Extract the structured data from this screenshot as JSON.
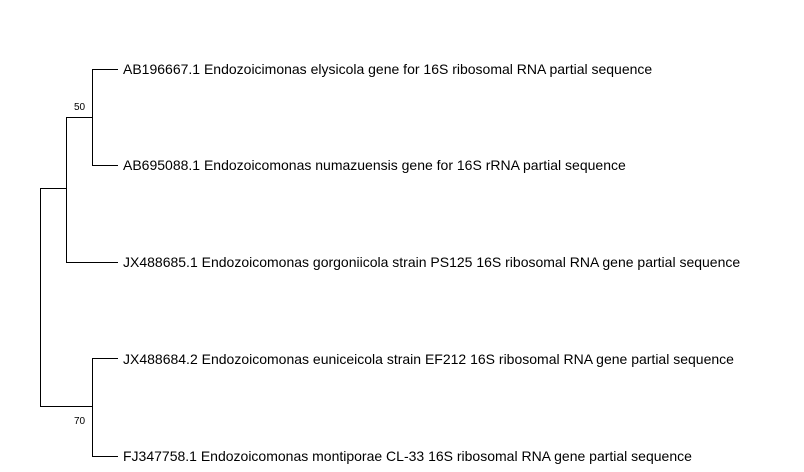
{
  "tree": {
    "leaves": [
      {
        "id": "leaf1",
        "label": "AB196667.1 Endozoicimonas elysicola gene for 16S ribosomal RNA partial sequence"
      },
      {
        "id": "leaf2",
        "label": "AB695088.1 Endozoicomonas numazuensis gene for 16S rRNA partial sequence"
      },
      {
        "id": "leaf3",
        "label": "JX488685.1 Endozoicomonas gorgoniicola strain PS125 16S ribosomal RNA gene partial sequence"
      },
      {
        "id": "leaf4",
        "label": "JX488684.2 Endozoicomonas euniceicola strain EF212 16S ribosomal RNA gene partial sequence"
      },
      {
        "id": "leaf5",
        "label": "FJ347758.1 Endozoicomonas montiporae CL-33 16S ribosomal RNA gene partial sequence"
      }
    ],
    "support_values": {
      "clade_leaf1_leaf2": "50",
      "clade_leaf4_leaf5": "70"
    }
  }
}
